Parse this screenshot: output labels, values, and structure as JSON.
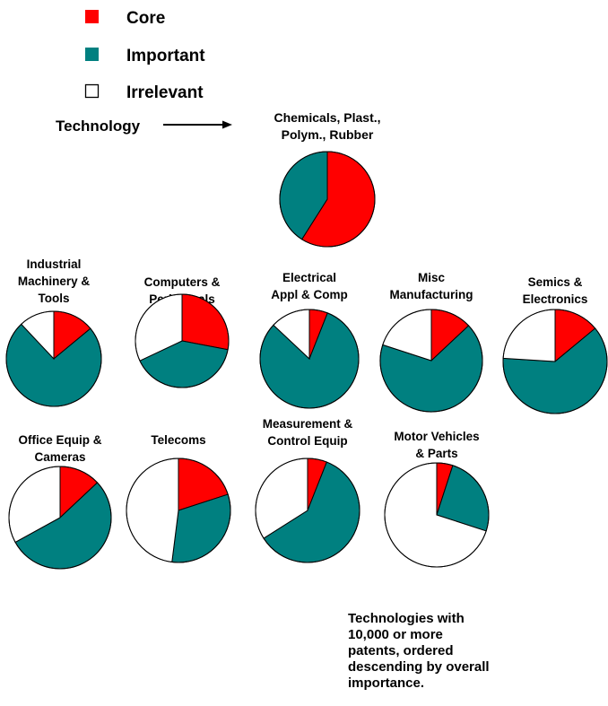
{
  "chart_data": {
    "type": "pie",
    "legend": {
      "placement": "top-left",
      "entries": [
        {
          "name": "Core",
          "color": "#ff0000"
        },
        {
          "name": "Important",
          "color": "#008080"
        },
        {
          "name": "Irrelevant",
          "color": "#ffffff"
        }
      ]
    },
    "annotation": "Technology",
    "note": [
      "Technologies with",
      "10,000 or more",
      "patents, ordered",
      "descending by overall",
      "importance."
    ],
    "pies": [
      {
        "title": [
          "Chemicals, Plast.,",
          "Polym., Rubber"
        ],
        "values": {
          "Core": 59,
          "Important": 41,
          "Irrelevant": 0
        }
      },
      {
        "title": [
          "Industrial",
          "Machinery &",
          "Tools"
        ],
        "values": {
          "Core": 14,
          "Important": 74,
          "Irrelevant": 12
        }
      },
      {
        "title": [
          "Computers &",
          "Peripherals"
        ],
        "values": {
          "Core": 28,
          "Important": 40,
          "Irrelevant": 32
        }
      },
      {
        "title": [
          "Electrical",
          "Appl & Comp"
        ],
        "values": {
          "Core": 6,
          "Important": 81,
          "Irrelevant": 13
        }
      },
      {
        "title": [
          "Misc",
          "Manufacturing"
        ],
        "values": {
          "Core": 13,
          "Important": 67,
          "Irrelevant": 20
        }
      },
      {
        "title": [
          "Semics &",
          "Electronics"
        ],
        "values": {
          "Core": 14,
          "Important": 62,
          "Irrelevant": 24
        }
      },
      {
        "title": [
          "Office Equip &",
          "Cameras"
        ],
        "values": {
          "Core": 13,
          "Important": 54,
          "Irrelevant": 33
        }
      },
      {
        "title": [
          "Telecoms"
        ],
        "values": {
          "Core": 20,
          "Important": 32,
          "Irrelevant": 48
        }
      },
      {
        "title": [
          "Measurement &",
          "Control Equip"
        ],
        "values": {
          "Core": 6,
          "Important": 60,
          "Irrelevant": 34
        }
      },
      {
        "title": [
          "Motor Vehicles",
          "& Parts"
        ],
        "values": {
          "Core": 5,
          "Important": 25,
          "Irrelevant": 70
        }
      }
    ]
  }
}
